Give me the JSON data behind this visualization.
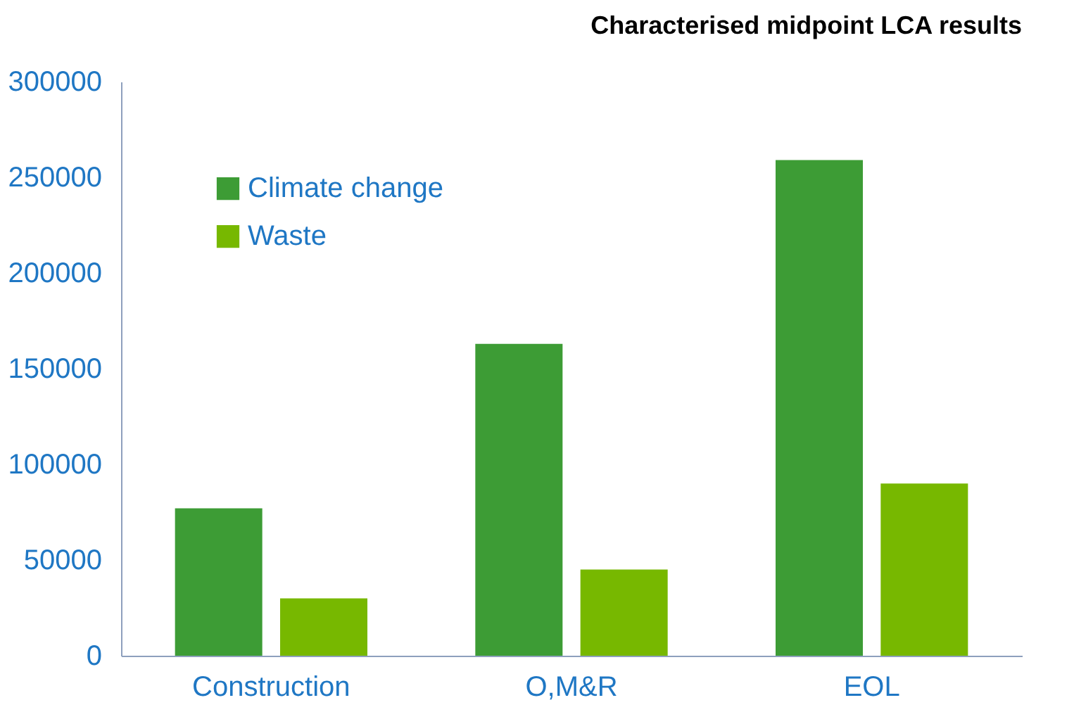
{
  "chart_data": {
    "type": "bar",
    "title": "Characterised midpoint LCA results",
    "categories": [
      "Construction",
      "O,M&R",
      "EOL"
    ],
    "series": [
      {
        "name": "Climate change",
        "color": "#3d9c35",
        "values": [
          77000,
          163000,
          259000
        ]
      },
      {
        "name": "Waste",
        "color": "#77b800",
        "values": [
          30000,
          45000,
          90000
        ]
      }
    ],
    "ylim": [
      0,
      300000
    ],
    "yticks": [
      0,
      50000,
      100000,
      150000,
      200000,
      250000,
      300000
    ],
    "grid": false,
    "legend": "top left"
  }
}
